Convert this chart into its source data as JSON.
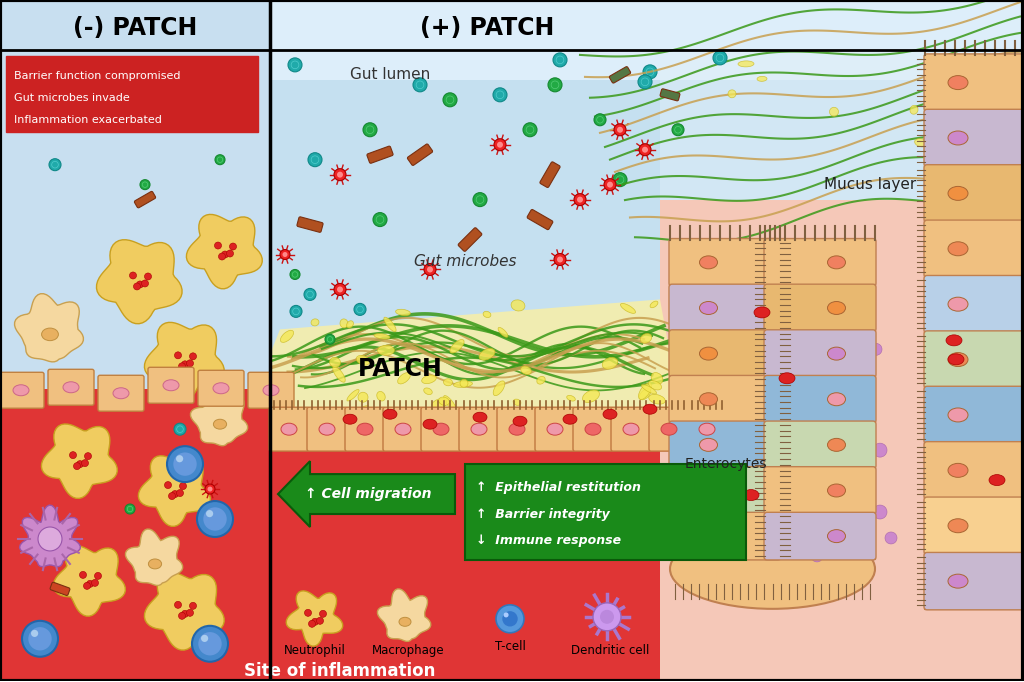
{
  "title_left": "(-) PATCH",
  "title_right": "(+) PATCH",
  "label_gut_lumen": "Gut lumen",
  "label_gut_microbes": "Gut microbes",
  "label_patch": "PATCH",
  "label_mucus": "Mucus layer",
  "label_enterocytes": "Enterocytes",
  "label_cell_migration": "↑ Cell migration",
  "label_site_inflammation": "Site of inflammation",
  "label_neutrophil": "Neutrophil",
  "label_macrophage": "Macrophage",
  "label_tcell": "T-cell",
  "label_dendritic": "Dendritic cell",
  "red_box_lines": [
    "Barrier function compromised",
    "Gut microbes invade",
    "Inflammation exacerbated"
  ],
  "green_box_lines": [
    "↑  Epithelial restitution",
    "↑  Barrier integrity",
    "↓  Immune response"
  ],
  "figsize": [
    10.24,
    6.82
  ],
  "dpi": 100
}
